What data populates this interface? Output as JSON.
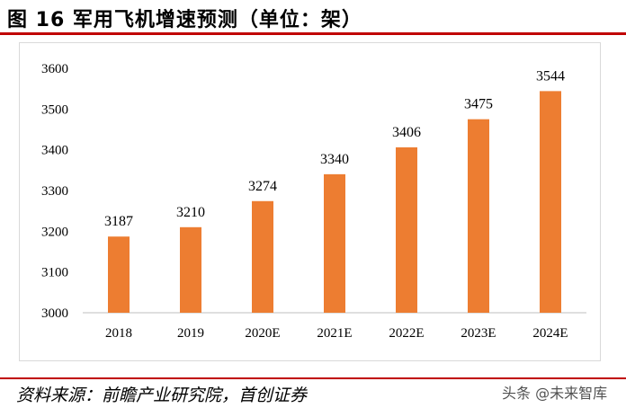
{
  "title": "图 16 军用飞机增速预测（单位：架）",
  "source": "资料来源：前瞻产业研究院，首创证券",
  "watermark": "头条 @未来智库",
  "chart_data": {
    "type": "bar",
    "title": "",
    "xlabel": "",
    "ylabel": "",
    "categories": [
      "2018",
      "2019",
      "2020E",
      "2021E",
      "2022E",
      "2023E",
      "2024E"
    ],
    "values": [
      3187,
      3210,
      3274,
      3340,
      3406,
      3475,
      3544
    ],
    "ylim": [
      3000,
      3600
    ],
    "yticks": [
      3000,
      3100,
      3200,
      3300,
      3400,
      3500,
      3600
    ],
    "bar_color": "#ed7d31",
    "grid": false,
    "legend": "none"
  }
}
